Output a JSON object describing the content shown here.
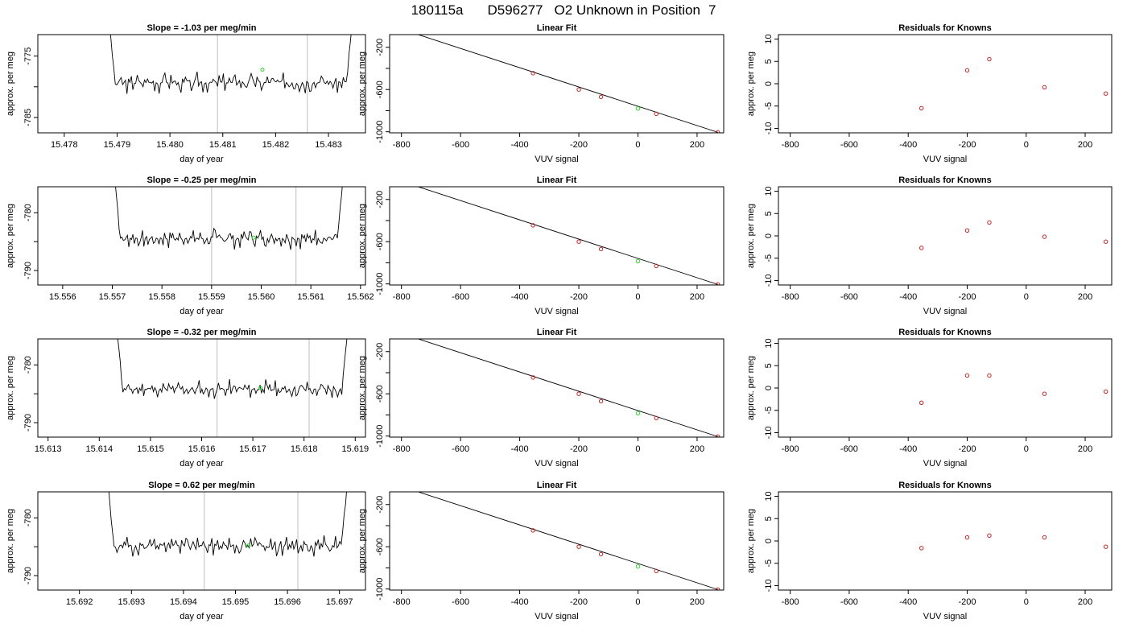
{
  "page_title": {
    "run": "180115a",
    "sample": "D596277",
    "desc": "O2 Unknown in Position",
    "pos": "7"
  },
  "chart_data": [
    {
      "row": 1,
      "panel": "timeseries",
      "type": "line",
      "title_prefix": "Slope = ",
      "slope": "-1.03",
      "title_suffix": " per meg/min",
      "xlabel": "day of year",
      "ylabel": "approx. per meg",
      "xlim": [
        15.4775,
        15.4837
      ],
      "ylim": [
        -787.5,
        -771.5
      ],
      "reverse_y": true,
      "xticks": [
        "15.478",
        "15.479",
        "15.480",
        "15.481",
        "15.482",
        "15.483"
      ],
      "yticks": [
        "-775",
        "-785"
      ],
      "x_start": 15.4788,
      "x_end": 15.4835,
      "mean": -779.3,
      "amp": 1.6,
      "seed": 3,
      "vlines": [
        15.4809,
        15.4826
      ],
      "highlight": {
        "x": 15.48175,
        "y": -777.2
      }
    },
    {
      "row": 1,
      "panel": "fit",
      "type": "scatter",
      "title": "Linear Fit",
      "xlabel": "VUV signal",
      "ylabel": "approx. per meg",
      "xlim": [
        -840,
        290
      ],
      "ylim": [
        -1010,
        -80
      ],
      "reverse_y": true,
      "xticks": [
        "-800",
        "-600",
        "-400",
        "-200",
        "0",
        "200"
      ],
      "yticks": [
        "-200",
        "-600",
        "-1000"
      ],
      "fit_line": [
        [
          -820,
          -10
        ],
        [
          270,
          -1005
        ]
      ],
      "knowns": [
        {
          "x": -355,
          "y": -445
        },
        {
          "x": -200,
          "y": -600
        },
        {
          "x": -125,
          "y": -670
        },
        {
          "x": 62,
          "y": -830
        },
        {
          "x": 270,
          "y": -1005
        }
      ],
      "unknown": {
        "x": 0,
        "y": -780
      }
    },
    {
      "row": 1,
      "panel": "residuals",
      "type": "scatter",
      "title": "Residuals for Knowns",
      "xlabel": "VUV signal",
      "ylabel": "approx. per meg",
      "xlim": [
        -840,
        290
      ],
      "ylim": [
        -11,
        11
      ],
      "xticks": [
        "-800",
        "-600",
        "-400",
        "-200",
        "0",
        "200"
      ],
      "yticks": [
        "-10",
        "-5",
        "0",
        "5",
        "10"
      ],
      "points": [
        {
          "x": -355,
          "y": -5.5
        },
        {
          "x": -200,
          "y": 3.0
        },
        {
          "x": -125,
          "y": 5.5
        },
        {
          "x": 62,
          "y": -0.8
        },
        {
          "x": 270,
          "y": -2.2
        }
      ]
    },
    {
      "row": 2,
      "panel": "timeseries",
      "type": "line",
      "title_prefix": "Slope = ",
      "slope": "-0.25",
      "title_suffix": " per meg/min",
      "xlabel": "day of year",
      "ylabel": "approx. per meg",
      "xlim": [
        15.5555,
        15.5621
      ],
      "ylim": [
        -792.5,
        -775.5
      ],
      "reverse_y": true,
      "xticks": [
        "15.556",
        "15.557",
        "15.558",
        "15.559",
        "15.560",
        "15.561",
        "15.562"
      ],
      "yticks": [
        "-780",
        "-790"
      ],
      "x_start": 15.557,
      "x_end": 15.5617,
      "mean": -784.4,
      "amp": 1.7,
      "seed": 7,
      "vlines": [
        15.559,
        15.5607
      ],
      "highlight": {
        "x": 15.55985,
        "y": -784.3
      }
    },
    {
      "row": 2,
      "panel": "fit",
      "type": "scatter",
      "title": "Linear Fit",
      "xlabel": "VUV signal",
      "ylabel": "approx. per meg",
      "xlim": [
        -840,
        290
      ],
      "ylim": [
        -1010,
        -80
      ],
      "reverse_y": true,
      "xticks": [
        "-800",
        "-600",
        "-400",
        "-200",
        "0",
        "200"
      ],
      "yticks": [
        "-200",
        "-600",
        "-1000"
      ],
      "fit_line": [
        [
          -820,
          -10
        ],
        [
          270,
          -1005
        ]
      ],
      "knowns": [
        {
          "x": -355,
          "y": -445
        },
        {
          "x": -200,
          "y": -600
        },
        {
          "x": -125,
          "y": -670
        },
        {
          "x": 62,
          "y": -830
        },
        {
          "x": 270,
          "y": -1005
        }
      ],
      "unknown": {
        "x": 0,
        "y": -785
      }
    },
    {
      "row": 2,
      "panel": "residuals",
      "type": "scatter",
      "title": "Residuals for Knowns",
      "xlabel": "VUV signal",
      "ylabel": "approx. per meg",
      "xlim": [
        -840,
        290
      ],
      "ylim": [
        -11,
        11
      ],
      "xticks": [
        "-800",
        "-600",
        "-400",
        "-200",
        "0",
        "200"
      ],
      "yticks": [
        "-10",
        "-5",
        "0",
        "5",
        "10"
      ],
      "points": [
        {
          "x": -355,
          "y": -2.7
        },
        {
          "x": -200,
          "y": 1.2
        },
        {
          "x": -125,
          "y": 3.0
        },
        {
          "x": 62,
          "y": -0.2
        },
        {
          "x": 270,
          "y": -1.3
        }
      ]
    },
    {
      "row": 3,
      "panel": "timeseries",
      "type": "line",
      "title_prefix": "Slope = ",
      "slope": "-0.32",
      "title_suffix": " per meg/min",
      "xlabel": "day of year",
      "ylabel": "approx. per meg",
      "xlim": [
        15.6128,
        15.6192
      ],
      "ylim": [
        -792.5,
        -775.5
      ],
      "reverse_y": true,
      "xticks": [
        "15.613",
        "15.614",
        "15.615",
        "15.616",
        "15.617",
        "15.618",
        "15.619"
      ],
      "yticks": [
        "-780",
        "-790"
      ],
      "x_start": 15.6143,
      "x_end": 15.6189,
      "mean": -784.2,
      "amp": 1.5,
      "seed": 11,
      "vlines": [
        15.6163,
        15.6181
      ],
      "highlight": {
        "x": 15.61715,
        "y": -784.0
      }
    },
    {
      "row": 3,
      "panel": "fit",
      "type": "scatter",
      "title": "Linear Fit",
      "xlabel": "VUV signal",
      "ylabel": "approx. per meg",
      "xlim": [
        -840,
        290
      ],
      "ylim": [
        -1010,
        -80
      ],
      "reverse_y": true,
      "xticks": [
        "-800",
        "-600",
        "-400",
        "-200",
        "0",
        "200"
      ],
      "yticks": [
        "-200",
        "-600",
        "-1000"
      ],
      "fit_line": [
        [
          -820,
          -10
        ],
        [
          270,
          -1005
        ]
      ],
      "knowns": [
        {
          "x": -355,
          "y": -445
        },
        {
          "x": -200,
          "y": -600
        },
        {
          "x": -125,
          "y": -670
        },
        {
          "x": 62,
          "y": -830
        },
        {
          "x": 270,
          "y": -1005
        }
      ],
      "unknown": {
        "x": 0,
        "y": -784
      }
    },
    {
      "row": 3,
      "panel": "residuals",
      "type": "scatter",
      "title": "Residuals for Knowns",
      "xlabel": "VUV signal",
      "ylabel": "approx. per meg",
      "xlim": [
        -840,
        290
      ],
      "ylim": [
        -11,
        11
      ],
      "xticks": [
        "-800",
        "-600",
        "-400",
        "-200",
        "0",
        "200"
      ],
      "yticks": [
        "-10",
        "-5",
        "0",
        "5",
        "10"
      ],
      "points": [
        {
          "x": -355,
          "y": -3.3
        },
        {
          "x": -200,
          "y": 2.8
        },
        {
          "x": -125,
          "y": 2.8
        },
        {
          "x": 62,
          "y": -1.3
        },
        {
          "x": 270,
          "y": -0.8
        }
      ]
    },
    {
      "row": 4,
      "panel": "timeseries",
      "type": "line",
      "title_prefix": "Slope = ",
      "slope": "0.62",
      "title_suffix": " per meg/min",
      "xlabel": "day of year",
      "ylabel": "approx. per meg",
      "xlim": [
        15.6912,
        15.6975
      ],
      "ylim": [
        -792.5,
        -775.5
      ],
      "reverse_y": true,
      "xticks": [
        "15.692",
        "15.693",
        "15.694",
        "15.695",
        "15.696",
        "15.697"
      ],
      "yticks": [
        "-780",
        "-790"
      ],
      "x_start": 15.6925,
      "x_end": 15.6972,
      "mean": -784.8,
      "amp": 1.7,
      "seed": 19,
      "vlines": [
        15.6944,
        15.6962
      ],
      "highlight": {
        "x": 15.69525,
        "y": -784.8
      }
    },
    {
      "row": 4,
      "panel": "fit",
      "type": "scatter",
      "title": "Linear Fit",
      "xlabel": "VUV signal",
      "ylabel": "approx. per meg",
      "xlim": [
        -840,
        290
      ],
      "ylim": [
        -1010,
        -80
      ],
      "reverse_y": true,
      "xticks": [
        "-800",
        "-600",
        "-400",
        "-200",
        "0",
        "200"
      ],
      "yticks": [
        "-200",
        "-600",
        "-1000"
      ],
      "fit_line": [
        [
          -820,
          -10
        ],
        [
          270,
          -1005
        ]
      ],
      "knowns": [
        {
          "x": -355,
          "y": -445
        },
        {
          "x": -200,
          "y": -600
        },
        {
          "x": -125,
          "y": -670
        },
        {
          "x": 62,
          "y": -830
        },
        {
          "x": 270,
          "y": -1005
        }
      ],
      "unknown": {
        "x": 0,
        "y": -786
      }
    },
    {
      "row": 4,
      "panel": "residuals",
      "type": "scatter",
      "title": "Residuals for Knowns",
      "xlabel": "VUV signal",
      "ylabel": "approx. per meg",
      "xlim": [
        -840,
        290
      ],
      "ylim": [
        -11,
        11
      ],
      "xticks": [
        "-800",
        "-600",
        "-400",
        "-200",
        "0",
        "200"
      ],
      "yticks": [
        "-10",
        "-5",
        "0",
        "5",
        "10"
      ],
      "points": [
        {
          "x": -355,
          "y": -1.6
        },
        {
          "x": -200,
          "y": 0.8
        },
        {
          "x": -125,
          "y": 1.2
        },
        {
          "x": 62,
          "y": 0.8
        },
        {
          "x": 270,
          "y": -1.3
        }
      ]
    }
  ]
}
